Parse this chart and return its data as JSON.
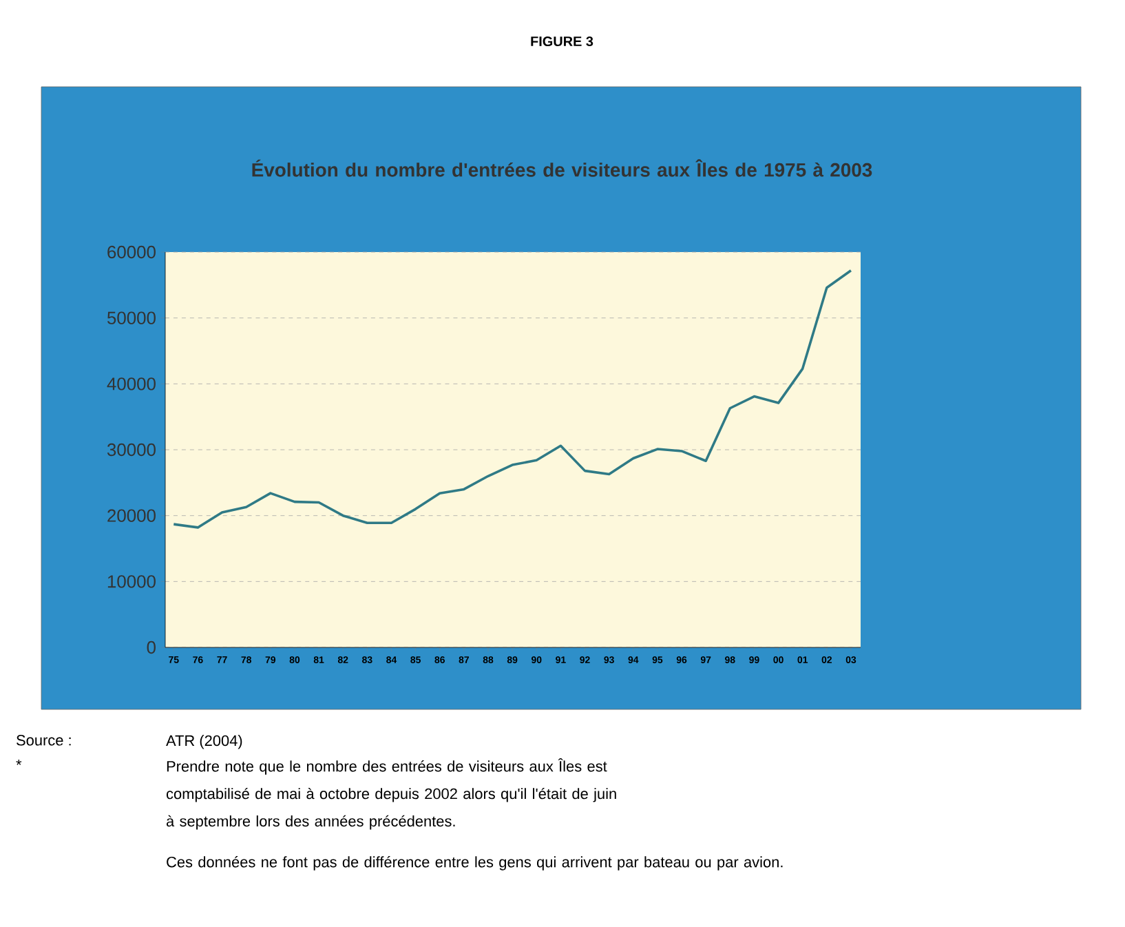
{
  "chart_data": {
    "type": "line",
    "title": "Évolution du nombre d'entrées de visiteurs aux Îles de 1975 à 2003",
    "categories": [
      "75",
      "76",
      "77",
      "78",
      "79",
      "80",
      "81",
      "82",
      "83",
      "84",
      "85",
      "86",
      "87",
      "88",
      "89",
      "90",
      "91",
      "92",
      "93",
      "94",
      "95",
      "96",
      "97",
      "98",
      "99",
      "00",
      "01",
      "02",
      "03"
    ],
    "series": [
      {
        "color": "#2f7a86",
        "values": [
          18700,
          18200,
          20500,
          21300,
          23400,
          22100,
          22000,
          20000,
          18900,
          18900,
          21000,
          23400,
          24000,
          26000,
          27700,
          28400,
          30600,
          26800,
          26300,
          28700,
          30100,
          29800,
          28300,
          36300,
          38100,
          37100,
          42300,
          54600,
          57200
        ]
      }
    ],
    "ylim": [
      0,
      60000
    ],
    "yticks": [
      0,
      10000,
      20000,
      30000,
      40000,
      50000,
      60000
    ],
    "grid": "y",
    "legend": false,
    "marker": "none",
    "line_style": "solid",
    "annotations": [
      "FIGURE 3",
      "Source :",
      "ATR (2004)",
      "*",
      "Prendre note que le nombre des entrées de visiteurs aux Îles est comptabilisé de mai à octobre depuis 2002 alors qu'il l'était de juin à septembre lors des années précédentes.",
      "Ces données ne font pas de différence entre les gens qui arrivent par bateau ou par avion."
    ]
  }
}
